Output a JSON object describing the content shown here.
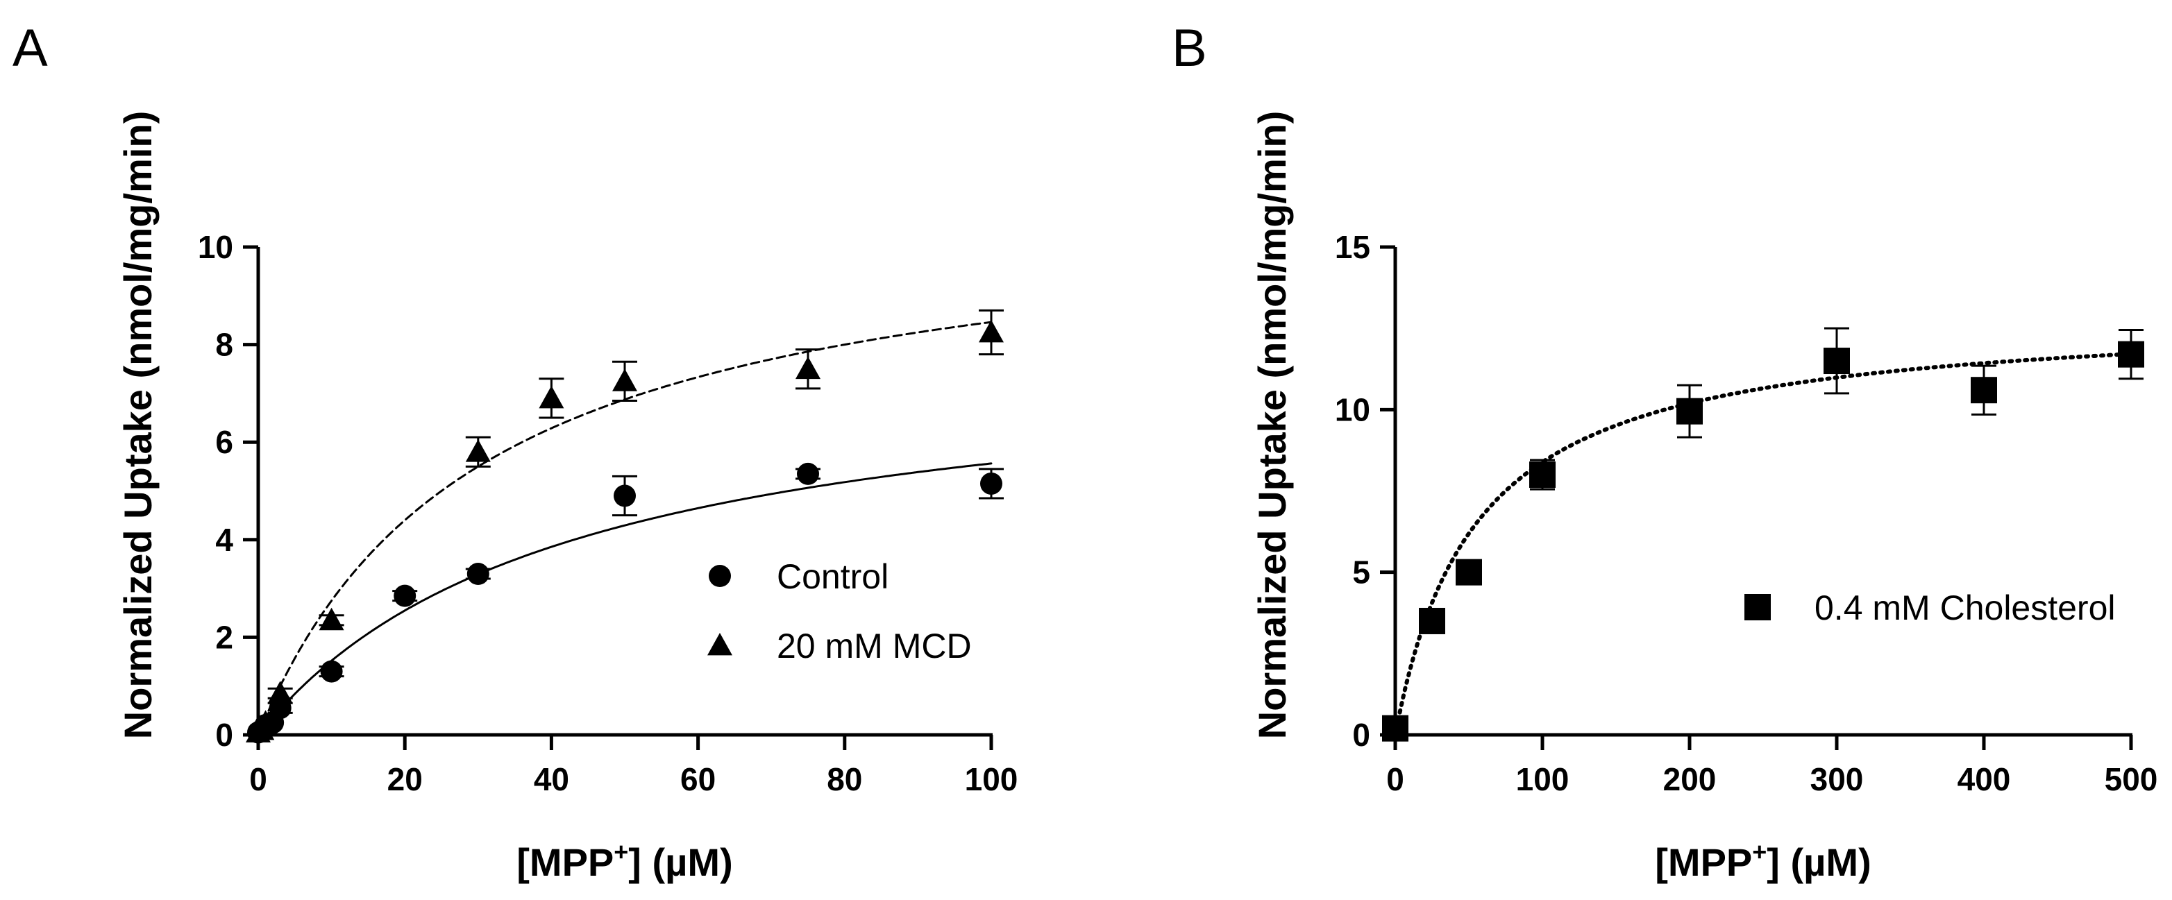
{
  "chart_data": [
    {
      "panel": "A",
      "type": "scatter",
      "title": "",
      "xlabel": "[MPP+] (µM)",
      "xlabel_main": "[MPP",
      "xlabel_sup": "+",
      "xlabel_tail": "] (µM)",
      "ylabel": "Normalized Uptake (nmol/mg/min)",
      "xlim": [
        0,
        100
      ],
      "ylim": [
        0,
        10
      ],
      "xticks": [
        0,
        20,
        40,
        60,
        80,
        100
      ],
      "yticks": [
        0,
        2,
        4,
        6,
        8,
        10
      ],
      "grid": false,
      "legend_position": "center-right",
      "series": [
        {
          "name": "Control",
          "marker": "circle",
          "fit": "solid",
          "vmax": 7.9,
          "km": 42,
          "x": [
            0,
            0.5,
            1,
            2,
            3,
            10,
            20,
            30,
            50,
            75,
            100
          ],
          "y": [
            0.05,
            0.1,
            0.2,
            0.25,
            0.55,
            1.3,
            2.85,
            3.3,
            4.9,
            5.35,
            5.15
          ],
          "err": [
            0.05,
            0.05,
            0.05,
            0.05,
            0.1,
            0.1,
            0.1,
            0.1,
            0.4,
            0.1,
            0.3
          ]
        },
        {
          "name": "20 mM MCD",
          "marker": "triangle",
          "fit": "dashed",
          "vmax": 11.0,
          "km": 30,
          "x": [
            0,
            0.5,
            1,
            3,
            10,
            30,
            40,
            50,
            75,
            100
          ],
          "y": [
            0.05,
            0.1,
            0.25,
            0.85,
            2.35,
            5.8,
            6.9,
            7.25,
            7.5,
            8.25
          ],
          "err": [
            0.05,
            0.05,
            0.05,
            0.1,
            0.1,
            0.3,
            0.4,
            0.4,
            0.4,
            0.45
          ]
        }
      ]
    },
    {
      "panel": "B",
      "type": "scatter",
      "title": "",
      "xlabel": "[MPP+] (µM)",
      "xlabel_main": "[MPP",
      "xlabel_sup": "+",
      "xlabel_tail": "] (µM)",
      "ylabel": "Normalized Uptake (nmol/mg/min)",
      "xlim": [
        0,
        500
      ],
      "ylim": [
        0,
        15
      ],
      "xticks": [
        0,
        100,
        200,
        300,
        400,
        500
      ],
      "yticks": [
        0,
        5,
        10,
        15
      ],
      "grid": false,
      "legend_position": "center-right",
      "series": [
        {
          "name": "0.4 mM Cholesterol",
          "marker": "square",
          "fit": "dotted",
          "vmax": 13.0,
          "km": 55,
          "x": [
            0,
            25,
            50,
            100,
            200,
            300,
            400,
            500
          ],
          "y": [
            0.2,
            3.5,
            5.0,
            8.0,
            9.95,
            11.5,
            10.6,
            11.7
          ],
          "err": [
            0.1,
            0.2,
            0.2,
            0.45,
            0.8,
            1.0,
            0.75,
            0.75
          ]
        }
      ]
    }
  ]
}
